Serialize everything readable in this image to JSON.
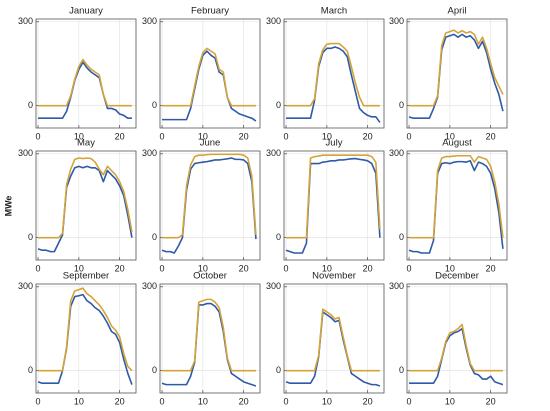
{
  "y_label": "MWe",
  "chart_data": [
    {
      "type": "line",
      "title": "January",
      "x": [
        0,
        1,
        2,
        3,
        4,
        5,
        6,
        7,
        8,
        9,
        10,
        11,
        12,
        13,
        14,
        15,
        16,
        17,
        18,
        19,
        20,
        21,
        22,
        23
      ],
      "xlim": [
        -0.5,
        24
      ],
      "xticks": [
        0,
        10,
        20
      ],
      "ylim": [
        -80,
        310
      ],
      "yticks": [
        0,
        300
      ],
      "grid": true,
      "series": [
        {
          "color": "#2e5aa8",
          "values": [
            -45,
            -45,
            -45,
            -45,
            -45,
            -45,
            -45,
            -20,
            30,
            90,
            130,
            155,
            135,
            120,
            110,
            100,
            40,
            -10,
            -10,
            -15,
            -30,
            -35,
            -45,
            -45
          ]
        },
        {
          "color": "#d4a43a",
          "values": [
            0,
            0,
            0,
            0,
            0,
            0,
            0,
            0,
            35,
            95,
            140,
            165,
            145,
            130,
            120,
            110,
            40,
            0,
            0,
            0,
            0,
            0,
            0,
            0
          ]
        }
      ]
    },
    {
      "type": "line",
      "title": "February",
      "x": [
        0,
        1,
        2,
        3,
        4,
        5,
        6,
        7,
        8,
        9,
        10,
        11,
        12,
        13,
        14,
        15,
        16,
        17,
        18,
        19,
        20,
        21,
        22,
        23
      ],
      "xlim": [
        -0.5,
        24
      ],
      "xticks": [
        0,
        10,
        20
      ],
      "ylim": [
        -80,
        310
      ],
      "yticks": [
        0,
        300
      ],
      "grid": true,
      "series": [
        {
          "color": "#2e5aa8",
          "values": [
            -50,
            -50,
            -50,
            -50,
            -50,
            -50,
            -50,
            -10,
            60,
            130,
            180,
            195,
            180,
            170,
            120,
            110,
            30,
            -10,
            -20,
            -30,
            -35,
            -40,
            -45,
            -55
          ]
        },
        {
          "color": "#d4a43a",
          "values": [
            0,
            0,
            0,
            0,
            0,
            0,
            0,
            0,
            70,
            140,
            190,
            205,
            195,
            185,
            130,
            120,
            30,
            0,
            0,
            0,
            0,
            0,
            0,
            0
          ]
        }
      ]
    },
    {
      "type": "line",
      "title": "March",
      "x": [
        0,
        1,
        2,
        3,
        4,
        5,
        6,
        7,
        8,
        9,
        10,
        11,
        12,
        13,
        14,
        15,
        16,
        17,
        18,
        19,
        20,
        21,
        22,
        23
      ],
      "xlim": [
        -0.5,
        24
      ],
      "xticks": [
        0,
        10,
        20
      ],
      "ylim": [
        -80,
        310
      ],
      "yticks": [
        0,
        300
      ],
      "grid": true,
      "series": [
        {
          "color": "#2e5aa8",
          "values": [
            -45,
            -45,
            -45,
            -45,
            -45,
            -45,
            -45,
            20,
            140,
            190,
            205,
            205,
            210,
            205,
            195,
            175,
            110,
            50,
            -10,
            -25,
            -35,
            -40,
            -40,
            -60
          ]
        },
        {
          "color": "#d4a43a",
          "values": [
            0,
            0,
            0,
            0,
            0,
            0,
            0,
            25,
            150,
            200,
            220,
            222,
            222,
            222,
            210,
            195,
            140,
            80,
            30,
            0,
            0,
            0,
            0,
            0
          ]
        }
      ]
    },
    {
      "type": "line",
      "title": "April",
      "x": [
        0,
        1,
        2,
        3,
        4,
        5,
        6,
        7,
        8,
        9,
        10,
        11,
        12,
        13,
        14,
        15,
        16,
        17,
        18,
        19,
        20,
        21,
        22,
        23
      ],
      "xlim": [
        -0.5,
        24
      ],
      "xticks": [
        0,
        10,
        20
      ],
      "ylim": [
        -80,
        310
      ],
      "yticks": [
        0,
        300
      ],
      "grid": true,
      "series": [
        {
          "color": "#2e5aa8",
          "values": [
            -40,
            -45,
            -45,
            -45,
            -45,
            -45,
            -10,
            30,
            200,
            245,
            250,
            255,
            245,
            255,
            245,
            250,
            235,
            205,
            230,
            190,
            130,
            80,
            40,
            -20
          ]
        },
        {
          "color": "#d4a43a",
          "values": [
            0,
            0,
            0,
            0,
            0,
            0,
            0,
            35,
            215,
            260,
            265,
            270,
            260,
            268,
            260,
            265,
            255,
            220,
            245,
            205,
            150,
            100,
            70,
            40
          ]
        }
      ]
    },
    {
      "type": "line",
      "title": "May",
      "x": [
        0,
        1,
        2,
        3,
        4,
        5,
        6,
        7,
        8,
        9,
        10,
        11,
        12,
        13,
        14,
        15,
        16,
        17,
        18,
        19,
        20,
        21,
        22,
        23
      ],
      "xlim": [
        -0.5,
        24
      ],
      "xticks": [
        0,
        10,
        20
      ],
      "ylim": [
        -80,
        310
      ],
      "yticks": [
        0,
        300
      ],
      "grid": true,
      "series": [
        {
          "color": "#2e5aa8",
          "values": [
            -40,
            -45,
            -45,
            -50,
            -50,
            -20,
            10,
            180,
            220,
            250,
            255,
            250,
            255,
            250,
            250,
            240,
            200,
            240,
            225,
            210,
            185,
            150,
            80,
            0
          ]
        },
        {
          "color": "#d4a43a",
          "values": [
            0,
            0,
            0,
            0,
            0,
            0,
            15,
            190,
            245,
            280,
            285,
            283,
            285,
            283,
            270,
            245,
            225,
            255,
            240,
            225,
            200,
            165,
            100,
            20
          ]
        }
      ]
    },
    {
      "type": "line",
      "title": "June",
      "x": [
        0,
        1,
        2,
        3,
        4,
        5,
        6,
        7,
        8,
        9,
        10,
        11,
        12,
        13,
        14,
        15,
        16,
        17,
        18,
        19,
        20,
        21,
        22,
        23
      ],
      "xlim": [
        -0.5,
        24
      ],
      "xticks": [
        0,
        10,
        20
      ],
      "ylim": [
        -80,
        310
      ],
      "yticks": [
        0,
        300
      ],
      "grid": true,
      "series": [
        {
          "color": "#2e5aa8",
          "values": [
            -45,
            -50,
            -50,
            -55,
            -30,
            0,
            170,
            245,
            265,
            268,
            270,
            272,
            275,
            278,
            278,
            280,
            282,
            285,
            280,
            280,
            278,
            265,
            200,
            -5
          ]
        },
        {
          "color": "#d4a43a",
          "values": [
            0,
            0,
            0,
            0,
            0,
            10,
            185,
            260,
            290,
            295,
            295,
            297,
            298,
            298,
            298,
            298,
            298,
            298,
            298,
            298,
            295,
            285,
            220,
            10
          ]
        }
      ]
    },
    {
      "type": "line",
      "title": "July",
      "x": [
        0,
        1,
        2,
        3,
        4,
        5,
        6,
        7,
        8,
        9,
        10,
        11,
        12,
        13,
        14,
        15,
        16,
        17,
        18,
        19,
        20,
        21,
        22,
        23
      ],
      "xlim": [
        -0.5,
        24
      ],
      "xticks": [
        0,
        10,
        20
      ],
      "ylim": [
        -80,
        310
      ],
      "yticks": [
        0,
        300
      ],
      "grid": true,
      "series": [
        {
          "color": "#2e5aa8",
          "values": [
            -45,
            -50,
            -55,
            -55,
            -55,
            -20,
            265,
            265,
            265,
            270,
            272,
            275,
            275,
            278,
            278,
            280,
            282,
            283,
            280,
            278,
            275,
            265,
            230,
            0
          ]
        },
        {
          "color": "#d4a43a",
          "values": [
            0,
            0,
            0,
            0,
            0,
            0,
            285,
            290,
            292,
            295,
            295,
            295,
            295,
            295,
            295,
            295,
            295,
            295,
            295,
            295,
            295,
            290,
            270,
            30
          ]
        }
      ]
    },
    {
      "type": "line",
      "title": "August",
      "x": [
        0,
        1,
        2,
        3,
        4,
        5,
        6,
        7,
        8,
        9,
        10,
        11,
        12,
        13,
        14,
        15,
        16,
        17,
        18,
        19,
        20,
        21,
        22,
        23
      ],
      "xlim": [
        -0.5,
        24
      ],
      "xticks": [
        0,
        10,
        20
      ],
      "ylim": [
        -80,
        310
      ],
      "yticks": [
        0,
        300
      ],
      "grid": true,
      "series": [
        {
          "color": "#2e5aa8",
          "values": [
            -45,
            -50,
            -50,
            -55,
            -55,
            -55,
            -10,
            230,
            265,
            268,
            265,
            270,
            272,
            272,
            270,
            275,
            240,
            270,
            265,
            255,
            230,
            175,
            90,
            -40
          ]
        },
        {
          "color": "#d4a43a",
          "values": [
            0,
            0,
            0,
            0,
            0,
            0,
            0,
            240,
            285,
            290,
            290,
            292,
            293,
            293,
            293,
            293,
            270,
            290,
            285,
            280,
            255,
            200,
            120,
            0
          ]
        }
      ]
    },
    {
      "type": "line",
      "title": "September",
      "x": [
        0,
        1,
        2,
        3,
        4,
        5,
        6,
        7,
        8,
        9,
        10,
        11,
        12,
        13,
        14,
        15,
        16,
        17,
        18,
        19,
        20,
        21,
        22,
        23
      ],
      "xlim": [
        -0.5,
        24
      ],
      "xticks": [
        0,
        10,
        20
      ],
      "ylim": [
        -80,
        310
      ],
      "yticks": [
        0,
        300
      ],
      "grid": true,
      "series": [
        {
          "color": "#2e5aa8",
          "values": [
            -40,
            -45,
            -45,
            -45,
            -45,
            -45,
            0,
            80,
            230,
            265,
            268,
            272,
            250,
            240,
            225,
            215,
            195,
            170,
            140,
            130,
            100,
            40,
            -10,
            -50
          ]
        },
        {
          "color": "#d4a43a",
          "values": [
            0,
            0,
            0,
            0,
            0,
            0,
            0,
            85,
            250,
            285,
            290,
            295,
            275,
            265,
            250,
            235,
            215,
            190,
            160,
            145,
            120,
            60,
            15,
            0
          ]
        }
      ]
    },
    {
      "type": "line",
      "title": "October",
      "x": [
        0,
        1,
        2,
        3,
        4,
        5,
        6,
        7,
        8,
        9,
        10,
        11,
        12,
        13,
        14,
        15,
        16,
        17,
        18,
        19,
        20,
        21,
        22,
        23
      ],
      "xlim": [
        -0.5,
        24
      ],
      "xticks": [
        0,
        10,
        20
      ],
      "ylim": [
        -80,
        310
      ],
      "yticks": [
        0,
        300
      ],
      "grid": true,
      "series": [
        {
          "color": "#2e5aa8",
          "values": [
            -45,
            -50,
            -50,
            -50,
            -50,
            -50,
            -50,
            -20,
            30,
            235,
            235,
            240,
            240,
            230,
            210,
            140,
            40,
            -10,
            -20,
            -30,
            -40,
            -45,
            -50,
            -55
          ]
        },
        {
          "color": "#d4a43a",
          "values": [
            0,
            0,
            0,
            0,
            0,
            0,
            0,
            0,
            35,
            245,
            250,
            255,
            255,
            245,
            225,
            155,
            45,
            0,
            0,
            0,
            0,
            0,
            0,
            0
          ]
        }
      ]
    },
    {
      "type": "line",
      "title": "November",
      "x": [
        0,
        1,
        2,
        3,
        4,
        5,
        6,
        7,
        8,
        9,
        10,
        11,
        12,
        13,
        14,
        15,
        16,
        17,
        18,
        19,
        20,
        21,
        22,
        23
      ],
      "xlim": [
        -0.5,
        24
      ],
      "xticks": [
        0,
        10,
        20
      ],
      "ylim": [
        -80,
        310
      ],
      "yticks": [
        0,
        300
      ],
      "grid": true,
      "series": [
        {
          "color": "#2e5aa8",
          "values": [
            -40,
            -45,
            -45,
            -45,
            -45,
            -45,
            -45,
            -20,
            50,
            210,
            200,
            190,
            175,
            180,
            110,
            50,
            -10,
            -20,
            -30,
            -40,
            -45,
            -50,
            -50,
            -55
          ]
        },
        {
          "color": "#d4a43a",
          "values": [
            0,
            0,
            0,
            0,
            0,
            0,
            0,
            0,
            55,
            220,
            210,
            200,
            185,
            190,
            120,
            55,
            0,
            0,
            0,
            0,
            0,
            0,
            0,
            0
          ]
        }
      ]
    },
    {
      "type": "line",
      "title": "December",
      "x": [
        0,
        1,
        2,
        3,
        4,
        5,
        6,
        7,
        8,
        9,
        10,
        11,
        12,
        13,
        14,
        15,
        16,
        17,
        18,
        19,
        20,
        21,
        22,
        23
      ],
      "xlim": [
        -0.5,
        24
      ],
      "xticks": [
        0,
        10,
        20
      ],
      "ylim": [
        -80,
        310
      ],
      "yticks": [
        0,
        300
      ],
      "grid": true,
      "series": [
        {
          "color": "#2e5aa8",
          "values": [
            -45,
            -45,
            -45,
            -45,
            -45,
            -45,
            -45,
            -20,
            40,
            100,
            125,
            135,
            140,
            150,
            80,
            20,
            -10,
            -15,
            -30,
            -30,
            -20,
            -40,
            -45,
            -50
          ]
        },
        {
          "color": "#d4a43a",
          "values": [
            0,
            0,
            0,
            0,
            0,
            0,
            0,
            0,
            45,
            105,
            135,
            140,
            150,
            165,
            90,
            25,
            0,
            0,
            0,
            0,
            0,
            0,
            0,
            0
          ]
        }
      ]
    }
  ]
}
